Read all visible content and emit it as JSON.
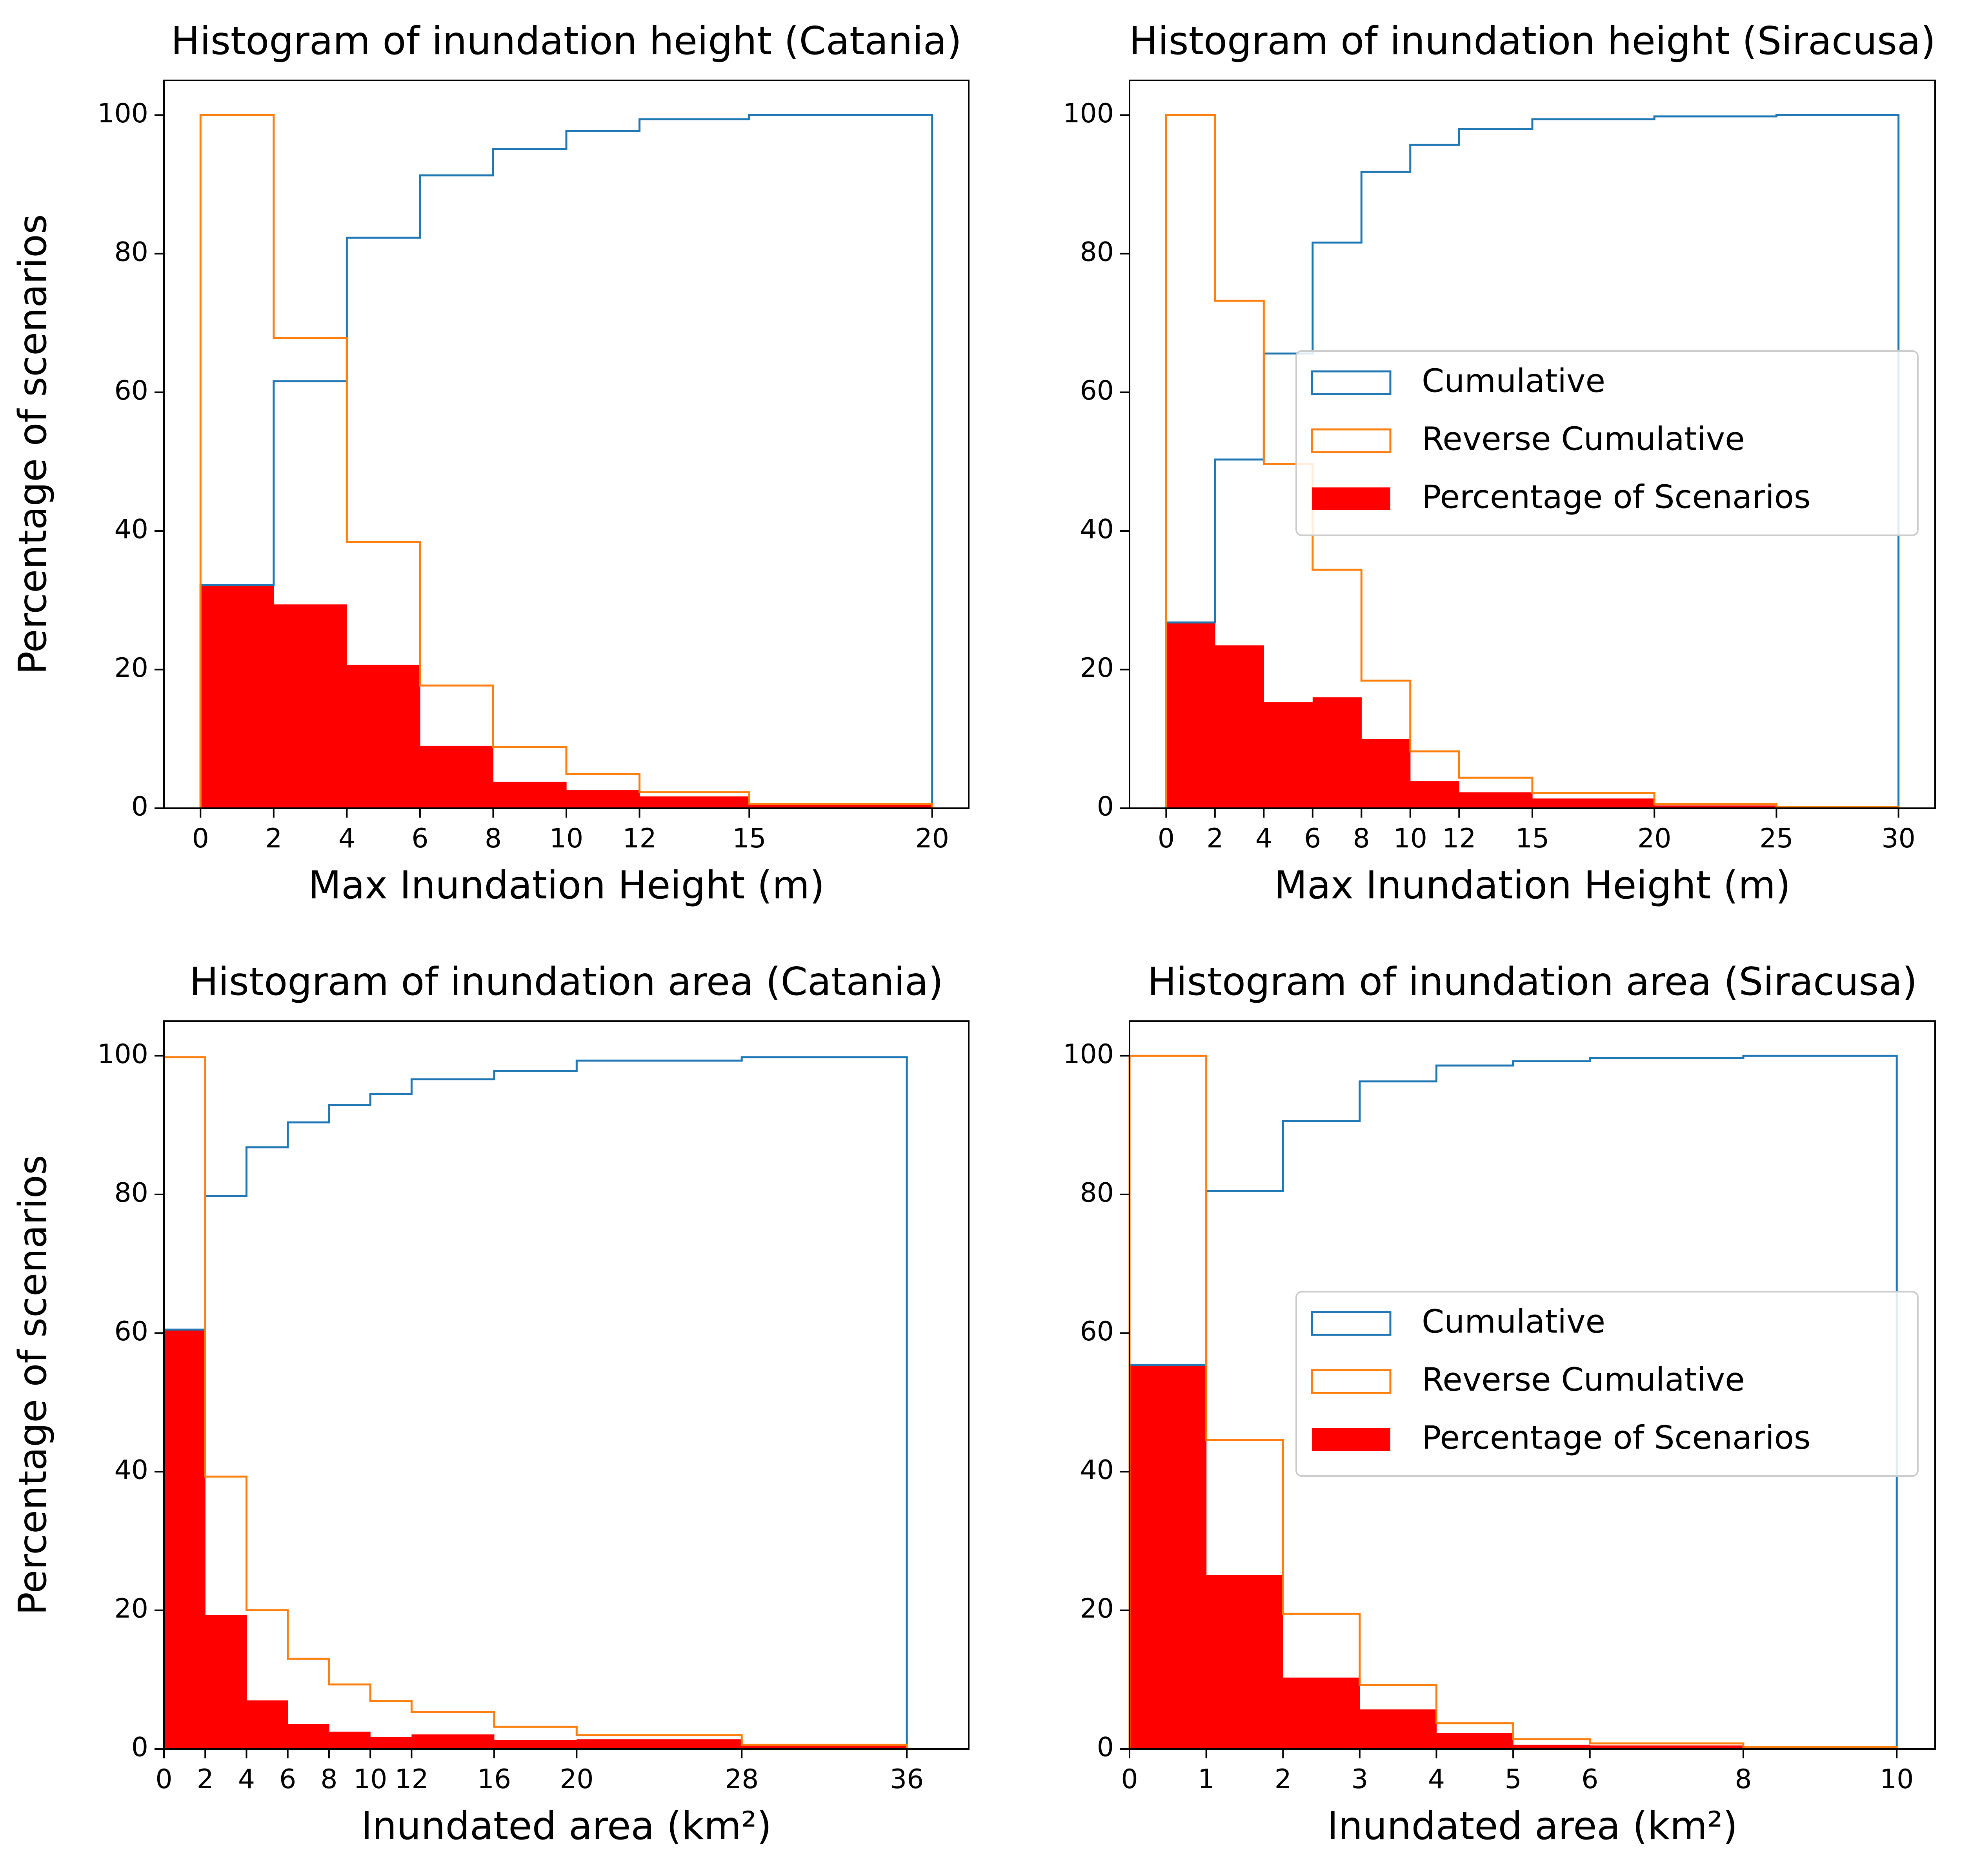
{
  "figure": {
    "ylabel": "Percentage of scenarios"
  },
  "chart_data": [
    {
      "type": "bar",
      "title": "Histogram of inundation height (Catania)",
      "xlabel": "Max Inundation Height (m)",
      "ylabel": "Percentage of scenarios",
      "bin_edges": [
        0,
        2,
        4,
        6,
        8,
        10,
        12,
        15,
        20
      ],
      "xticks": [
        0,
        2,
        4,
        6,
        8,
        10,
        12,
        15,
        20
      ],
      "xlim": [
        -1,
        21
      ],
      "ylim": [
        0,
        105
      ],
      "yticks": [
        0,
        20,
        40,
        60,
        80,
        100
      ],
      "series": [
        {
          "name": "Cumulative",
          "style": "step",
          "color": "#1f77b4",
          "values": [
            32.2,
            61.6,
            82.3,
            91.3,
            95.1,
            97.7,
            99.4,
            100
          ]
        },
        {
          "name": "Reverse Cumulative",
          "style": "step",
          "color": "#ff7f0e",
          "values": [
            100,
            67.8,
            38.4,
            17.7,
            8.8,
            4.9,
            2.3,
            0.6
          ]
        },
        {
          "name": "Percentage of Scenarios",
          "style": "bar",
          "color": "#ff0000",
          "values": [
            32.2,
            29.4,
            20.7,
            9.0,
            3.8,
            2.6,
            1.7,
            0.6
          ]
        }
      ],
      "legend": {
        "show": false
      }
    },
    {
      "type": "bar",
      "title": "Histogram of inundation height (Siracusa)",
      "xlabel": "Max Inundation Height (m)",
      "ylabel": "",
      "bin_edges": [
        0,
        2,
        4,
        6,
        8,
        10,
        12,
        15,
        20,
        25,
        30
      ],
      "xticks": [
        0,
        2,
        4,
        6,
        8,
        10,
        12,
        15,
        20,
        25,
        30
      ],
      "xlim": [
        -1.5,
        31.5
      ],
      "ylim": [
        0,
        105
      ],
      "yticks": [
        0,
        20,
        40,
        60,
        80,
        100
      ],
      "series": [
        {
          "name": "Cumulative",
          "style": "step",
          "color": "#1f77b4",
          "values": [
            26.8,
            50.3,
            65.6,
            81.6,
            91.8,
            95.7,
            98.0,
            99.4,
            99.8,
            100
          ]
        },
        {
          "name": "Reverse Cumulative",
          "style": "step",
          "color": "#ff7f0e",
          "values": [
            100,
            73.2,
            49.7,
            34.4,
            18.4,
            8.2,
            4.4,
            2.2,
            0.6,
            0.2
          ]
        },
        {
          "name": "Percentage of Scenarios",
          "style": "bar",
          "color": "#ff0000",
          "values": [
            26.8,
            23.5,
            15.3,
            16.0,
            10.0,
            3.9,
            2.3,
            1.4,
            0.4,
            0.2
          ]
        }
      ],
      "legend": {
        "show": true,
        "placement": "center-right"
      }
    },
    {
      "type": "bar",
      "title": "Histogram of inundation area (Catania)",
      "xlabel": "Inundated area (km²)",
      "ylabel": "Percentage of scenarios",
      "bin_edges": [
        0,
        2,
        4,
        6,
        8,
        10,
        12,
        16,
        20,
        28,
        36
      ],
      "xticks": [
        0,
        2,
        4,
        6,
        8,
        10,
        12,
        16,
        20,
        28,
        36
      ],
      "xticklabels": [
        "0",
        "2",
        "4",
        "6",
        "8",
        "10",
        "12",
        "16",
        "20",
        "28",
        "36"
      ],
      "xlim": [
        0,
        39
      ],
      "ylim": [
        0,
        105
      ],
      "yticks": [
        0,
        20,
        40,
        60,
        80,
        100
      ],
      "series": [
        {
          "name": "Cumulative",
          "style": "step",
          "color": "#1f77b4",
          "values": [
            60.5,
            79.8,
            86.8,
            90.4,
            92.9,
            94.5,
            96.6,
            97.8,
            99.3,
            99.8
          ]
        },
        {
          "name": "Reverse Cumulative",
          "style": "step",
          "color": "#ff7f0e",
          "values": [
            99.8,
            39.3,
            20.0,
            13.0,
            9.3,
            6.9,
            5.3,
            3.2,
            2.0,
            0.6
          ]
        },
        {
          "name": "Percentage of Scenarios",
          "style": "bar",
          "color": "#ff0000",
          "values": [
            60.5,
            19.3,
            7.0,
            3.6,
            2.5,
            1.7,
            2.1,
            1.3,
            1.4,
            0.5
          ]
        }
      ],
      "legend": {
        "show": false
      }
    },
    {
      "type": "bar",
      "title": "Histogram of inundation area (Siracusa)",
      "xlabel": "Inundated area (km²)",
      "ylabel": "",
      "bin_edges": [
        0,
        1,
        2,
        3,
        4,
        5,
        6,
        8,
        10
      ],
      "xticks": [
        0,
        1,
        2,
        3,
        4,
        5,
        6,
        8,
        10
      ],
      "xlim": [
        0,
        10.5
      ],
      "ylim": [
        0,
        105
      ],
      "yticks": [
        0,
        20,
        40,
        60,
        80,
        100
      ],
      "series": [
        {
          "name": "Cumulative",
          "style": "step",
          "color": "#1f77b4",
          "values": [
            55.4,
            80.5,
            90.6,
            96.3,
            98.6,
            99.2,
            99.7,
            100
          ]
        },
        {
          "name": "Reverse Cumulative",
          "style": "step",
          "color": "#ff7f0e",
          "values": [
            100,
            44.6,
            19.5,
            9.2,
            3.7,
            1.4,
            0.8,
            0.3
          ]
        },
        {
          "name": "Percentage of Scenarios",
          "style": "bar",
          "color": "#ff0000",
          "values": [
            55.4,
            25.1,
            10.3,
            5.7,
            2.3,
            0.6,
            0.5,
            0.3
          ]
        }
      ],
      "legend": {
        "show": true,
        "placement": "center-right"
      }
    }
  ]
}
